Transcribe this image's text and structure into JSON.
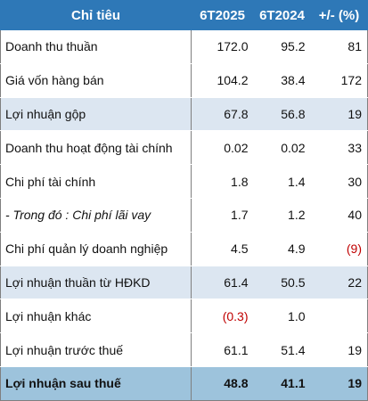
{
  "table": {
    "headers": [
      "Chỉ tiêu",
      "6T2025",
      "6T2024",
      "+/- (%)"
    ],
    "rows": [
      {
        "label": "Doanh thu thuần",
        "v2025": "172.0",
        "v2024": "95.2",
        "change": "81"
      },
      {
        "label": "Giá vốn hàng bán",
        "v2025": "104.2",
        "v2024": "38.4",
        "change": "172"
      },
      {
        "label": "Lợi nhuận gộp",
        "v2025": "67.8",
        "v2024": "56.8",
        "change": "19"
      },
      {
        "label": "Doanh thu hoạt động tài chính",
        "v2025": "0.02",
        "v2024": "0.02",
        "change": "33"
      },
      {
        "label": "Chi phí tài chính",
        "v2025": "1.8",
        "v2024": "1.4",
        "change": "30"
      },
      {
        "label": "- Trong đó : Chi phí lãi vay",
        "v2025": "1.7",
        "v2024": "1.2",
        "change": "40"
      },
      {
        "label": "Chi phí quản lý doanh nghiệp",
        "v2025": "4.5",
        "v2024": "4.9",
        "change": "(9)"
      },
      {
        "label": "Lợi nhuận thuần từ HĐKD",
        "v2025": "61.4",
        "v2024": "50.5",
        "change": "22"
      },
      {
        "label": "Lợi nhuận khác",
        "v2025": "(0.3)",
        "v2024": "1.0",
        "change": ""
      },
      {
        "label": "Lợi nhuận trước thuế",
        "v2025": "61.1",
        "v2024": "51.4",
        "change": "19"
      },
      {
        "label": "Lợi nhuận sau thuế",
        "v2025": "48.8",
        "v2024": "41.1",
        "change": "19"
      }
    ]
  },
  "colors": {
    "header_bg": "#2e78b7",
    "shaded_row_bg": "#dce6f1",
    "final_row_bg": "#9dc3dc",
    "negative_text": "#c00000"
  }
}
